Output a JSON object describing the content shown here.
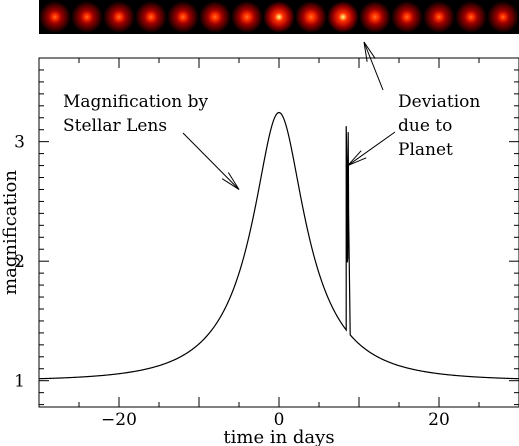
{
  "image_strip": {
    "star_brightness": [
      0.55,
      0.55,
      0.6,
      0.6,
      0.6,
      0.65,
      0.7,
      1.0,
      0.75,
      1.0,
      0.7,
      0.62,
      0.58,
      0.55,
      0.52
    ]
  },
  "chart_data": {
    "type": "line",
    "xlabel": "time in days",
    "ylabel": "magnification",
    "xlim": [
      -30,
      30
    ],
    "ylim": [
      0.78,
      3.7
    ],
    "x_ticks": [
      -20,
      0,
      20
    ],
    "x_tick_labels": [
      "−20",
      "0",
      "20"
    ],
    "y_ticks": [
      1,
      2,
      3
    ],
    "y_tick_labels": [
      "1",
      "2",
      "3"
    ],
    "grid": false,
    "series": [
      {
        "description": "single-lens microlensing light curve",
        "u0": 0.32,
        "tE": 10,
        "anomaly": {
          "t_start": 8.4,
          "t_end": 8.9,
          "peak_magnification": 3.13,
          "dip_magnification": 1.99
        }
      }
    ],
    "annotations": {
      "stellar": {
        "text_lines": [
          "Magnification by",
          "Stellar Lens"
        ],
        "points_to": [
          -5,
          2.6
        ]
      },
      "planet": {
        "text_lines": [
          "Deviation",
          "due to",
          "Planet"
        ],
        "points_to": [
          8.6,
          2.8
        ]
      }
    }
  }
}
